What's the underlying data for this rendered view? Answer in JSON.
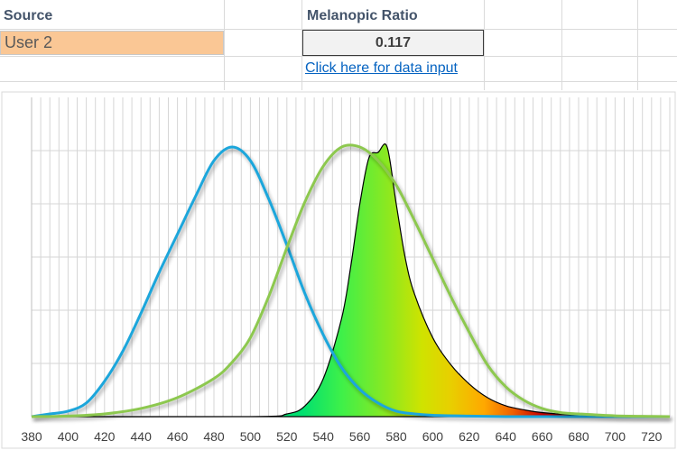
{
  "sheet": {
    "source_header": "Source",
    "source_value": "User 2",
    "ratio_header": "Melanopic Ratio",
    "ratio_value": "0.117",
    "data_input_link": "Click here for data input"
  },
  "colors": {
    "source_cell": "#fac795",
    "link": "#0563c1",
    "melanopic_curve": "#1fa6db",
    "photopic_curve": "#8dc84f"
  },
  "chart_data": {
    "type": "line",
    "x_ticks": [
      "380",
      "400",
      "420",
      "440",
      "460",
      "480",
      "500",
      "520",
      "540",
      "560",
      "580",
      "600",
      "620",
      "640",
      "660",
      "680",
      "700",
      "720"
    ],
    "xlim": [
      380,
      730
    ],
    "ylim": [
      0,
      1
    ],
    "grid": true,
    "series": [
      {
        "kind": "curve",
        "color": "#1fa6db",
        "x": [
          380,
          390,
          400,
          410,
          420,
          430,
          440,
          450,
          460,
          470,
          480,
          490,
          500,
          510,
          520,
          530,
          540,
          550,
          560,
          570,
          580,
          590,
          600,
          620,
          640,
          660,
          680,
          700,
          720,
          730
        ],
        "y": [
          0.0,
          0.01,
          0.02,
          0.05,
          0.13,
          0.24,
          0.38,
          0.53,
          0.67,
          0.81,
          0.94,
          0.99,
          0.94,
          0.8,
          0.63,
          0.45,
          0.3,
          0.18,
          0.1,
          0.05,
          0.02,
          0.01,
          0.005,
          0.002,
          0,
          0,
          0,
          0,
          0,
          0
        ]
      },
      {
        "kind": "curve",
        "color": "#8dc84f",
        "x": [
          380,
          400,
          420,
          440,
          460,
          480,
          490,
          500,
          510,
          520,
          530,
          540,
          550,
          560,
          570,
          580,
          590,
          600,
          610,
          620,
          630,
          640,
          650,
          660,
          670,
          680,
          700,
          720,
          730
        ],
        "y": [
          0,
          0.002,
          0.01,
          0.03,
          0.07,
          0.14,
          0.2,
          0.29,
          0.44,
          0.62,
          0.79,
          0.92,
          0.99,
          0.99,
          0.94,
          0.85,
          0.72,
          0.58,
          0.44,
          0.31,
          0.19,
          0.11,
          0.06,
          0.03,
          0.015,
          0.01,
          0.003,
          0.001,
          0
        ]
      },
      {
        "kind": "filled_spectrum",
        "x": [
          380,
          500,
          520,
          530,
          540,
          550,
          555,
          560,
          565,
          570,
          575,
          580,
          585,
          590,
          600,
          610,
          620,
          630,
          640,
          650,
          660,
          680,
          700,
          720,
          730
        ],
        "y": [
          0,
          0,
          0.01,
          0.04,
          0.14,
          0.36,
          0.55,
          0.78,
          0.95,
          0.97,
          0.99,
          0.78,
          0.58,
          0.45,
          0.29,
          0.19,
          0.12,
          0.07,
          0.04,
          0.025,
          0.015,
          0.005,
          0.002,
          0,
          0
        ]
      }
    ]
  }
}
